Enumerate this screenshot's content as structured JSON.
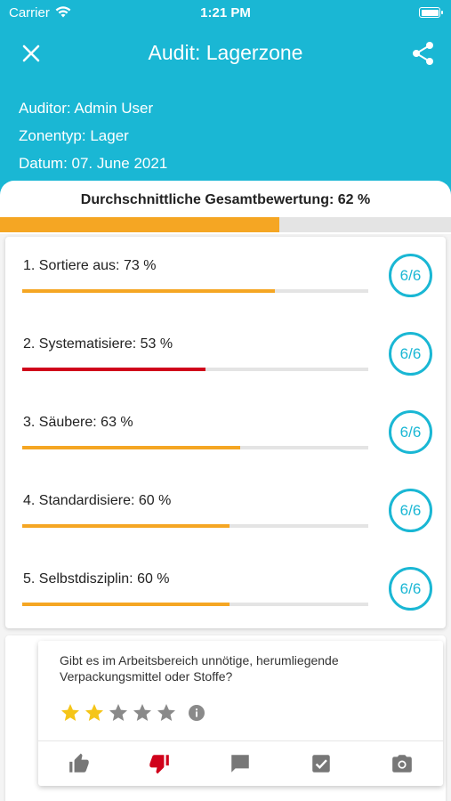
{
  "status_bar": {
    "carrier": "Carrier",
    "time": "1:21 PM"
  },
  "header": {
    "title": "Audit: Lagerzone",
    "auditor": "Auditor: Admin User",
    "zone_type": "Zonentyp: Lager",
    "date": "Datum: 07. June 2021"
  },
  "summary": {
    "label": "Durchschnittliche Gesamtbewertung: 62 %",
    "value": 0.62,
    "color": "#f5a623"
  },
  "categories": [
    {
      "label": "1. Sortiere aus: 73 %",
      "value": 0.73,
      "color": "#f5a623",
      "badge": "6/6"
    },
    {
      "label": "2. Systematisiere: 53 %",
      "value": 0.53,
      "color": "#d0021b",
      "badge": "6/6"
    },
    {
      "label": "3. Säubere: 63 %",
      "value": 0.63,
      "color": "#f5a623",
      "badge": "6/6"
    },
    {
      "label": "4. Standardisiere: 60 %",
      "value": 0.6,
      "color": "#f5a623",
      "badge": "6/6"
    },
    {
      "label": "5. Selbstdisziplin: 60 %",
      "value": 0.6,
      "color": "#f5a623",
      "badge": "6/6"
    }
  ],
  "question": {
    "text": "Gibt es im Arbeitsbereich unnötige, herumliegende Verpackungsmittel oder Stoffe?",
    "rating": 2,
    "max_rating": 5,
    "icons": [
      "thumb-up-icon",
      "thumb-down-icon",
      "comment-icon",
      "checkbox-icon",
      "camera-icon"
    ],
    "selected_action": "thumb-down-icon"
  },
  "colors": {
    "accent": "#1ab7d4",
    "warning": "#f5a623",
    "danger": "#d0021b",
    "star": "#f5c518"
  }
}
